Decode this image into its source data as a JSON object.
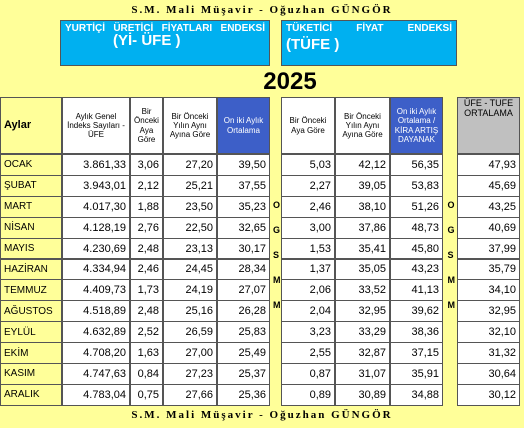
{
  "header": {
    "title": "S.M. Mali Müşavir - Oğuzhan GÜNGÖR"
  },
  "ufe": {
    "title": "YURTİÇİ ÜRETİCİ FİYATLARI ENDEKSİ",
    "short": "(Yİ- ÜFE )"
  },
  "tufe": {
    "title": "TÜKETİCİ FİYAT ENDEKSİ",
    "short": "(TÜFE )"
  },
  "year": "2025",
  "separators": [
    "OGSMM",
    "OGSMM"
  ],
  "table": {
    "columns": [
      "Aylar",
      "Aylık Genel İndeks Sayıları - ÜFE",
      "Bir Önceki Aya Göre",
      "Bir Önceki Yılın Aynı Ayına Göre",
      "On iki Aylık Ortalama",
      "Bir Önceki Aya Göre",
      "Bir Önceki Yılın Aynı Ayına Göre",
      "On iki Aylık Ortalama / KİRA ARTIŞ DAYANAK",
      "ÜFE - TUFE ORTALAMA"
    ],
    "rows": [
      [
        "OCAK",
        "3.861,33",
        "3,06",
        "27,20",
        "39,50",
        "5,03",
        "42,12",
        "56,35",
        "47,93"
      ],
      [
        "ŞUBAT",
        "3.943,01",
        "2,12",
        "25,21",
        "37,55",
        "2,27",
        "39,05",
        "53,83",
        "45,69"
      ],
      [
        "MART",
        "4.017,30",
        "1,88",
        "23,50",
        "35,23",
        "2,46",
        "38,10",
        "51,26",
        "43,25"
      ],
      [
        "NİSAN",
        "4.128,19",
        "2,76",
        "22,50",
        "32,65",
        "3,00",
        "37,86",
        "48,73",
        "40,69"
      ],
      [
        "MAYIS",
        "4.230,69",
        "2,48",
        "23,13",
        "30,17",
        "1,53",
        "35,41",
        "45,80",
        "37,99"
      ],
      [
        "HAZİRAN",
        "4.334,94",
        "2,46",
        "24,45",
        "28,34",
        "1,37",
        "35,05",
        "43,23",
        "35,79"
      ],
      [
        "TEMMUZ",
        "4.409,73",
        "1,73",
        "24,19",
        "27,07",
        "2,06",
        "33,52",
        "41,13",
        "34,10"
      ],
      [
        "AĞUSTOS",
        "4.518,89",
        "2,48",
        "25,16",
        "26,28",
        "2,04",
        "32,95",
        "39,62",
        "32,95"
      ],
      [
        "EYLÜL",
        "4.632,89",
        "2,52",
        "26,59",
        "25,83",
        "3,23",
        "33,29",
        "38,36",
        "32,10"
      ],
      [
        "EKİM",
        "4.708,20",
        "1,63",
        "27,00",
        "25,49",
        "2,55",
        "32,87",
        "37,15",
        "31,32"
      ],
      [
        "KASIM",
        "4.747,63",
        "0,84",
        "27,23",
        "25,37",
        "0,87",
        "31,07",
        "35,91",
        "30,64"
      ],
      [
        "ARALIK",
        "4.783,04",
        "0,75",
        "27,66",
        "25,36",
        "0,89",
        "30,89",
        "34,88",
        "30,12"
      ]
    ]
  },
  "footer": {
    "title": "S.M. Mali Müşavir - Oğuzhan GÜNGÖR"
  }
}
